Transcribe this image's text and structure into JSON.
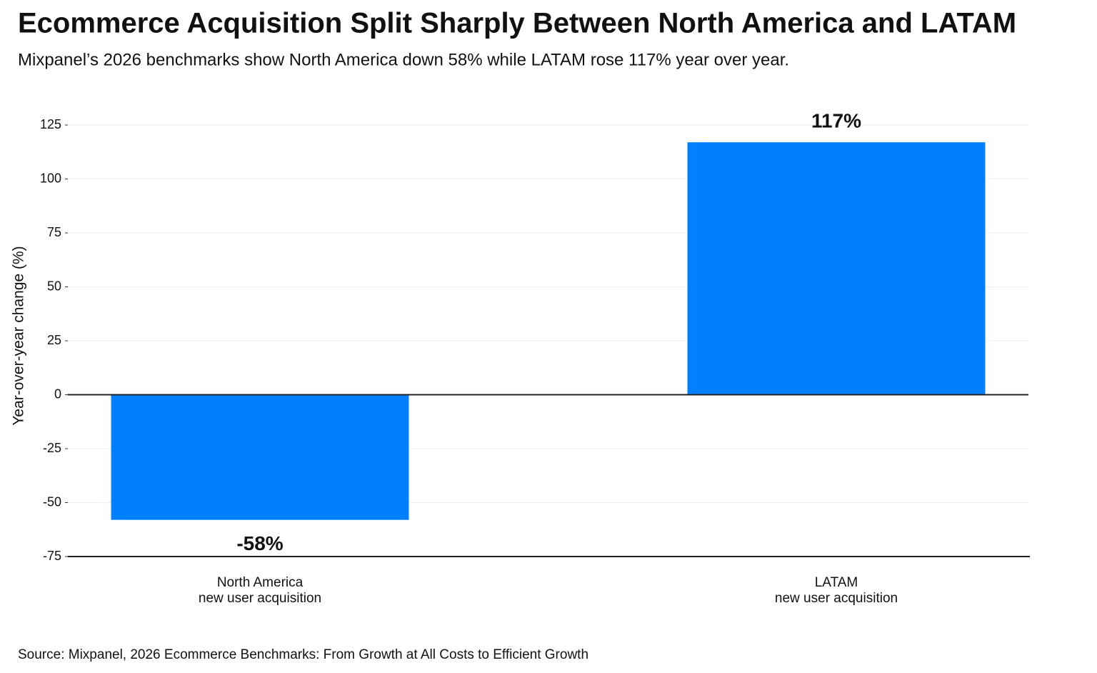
{
  "chart_data": {
    "type": "bar",
    "title": "Ecommerce Acquisition Split Sharply Between North America and LATAM",
    "subtitle": "Mixpanel’s 2026 benchmarks show North America down 58% while LATAM rose 117% year over year.",
    "y_label": "Year-over-year change (%)",
    "source": "Source: Mixpanel, 2026 Ecommerce Benchmarks: From Growth at All Costs to Efficient Growth",
    "categories": [
      "North America\nnew user acquisition",
      "LATAM\nnew user acquisition"
    ],
    "values": [
      -58,
      117
    ],
    "value_labels": [
      "-58%",
      "117%"
    ],
    "color": "#0080ff",
    "ylim": [
      -75,
      125
    ],
    "yticks": [
      -75,
      -50,
      -25,
      0,
      25,
      50,
      75,
      100,
      125
    ],
    "grid": true
  }
}
